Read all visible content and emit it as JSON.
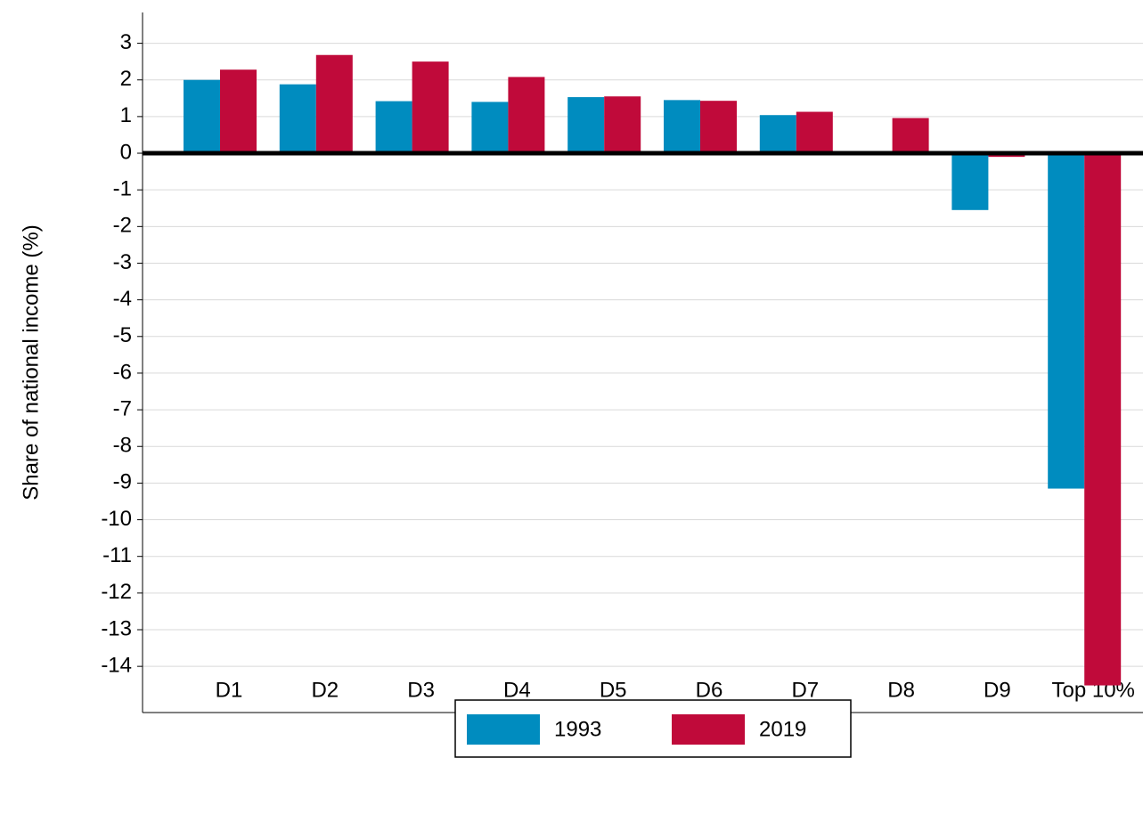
{
  "chart_data": {
    "type": "bar",
    "y_label": "Share of national income (%)",
    "categories": [
      "D1",
      "D2",
      "D3",
      "D4",
      "D5",
      "D6",
      "D7",
      "D8",
      "D9",
      "Top 10%"
    ],
    "series": [
      {
        "name": "1993",
        "color": "#008cbf",
        "values": [
          2.0,
          1.88,
          1.42,
          1.4,
          1.53,
          1.45,
          1.04,
          0.05,
          -1.55,
          -9.15
        ]
      },
      {
        "name": "2019",
        "color": "#c00a3a",
        "values": [
          2.28,
          2.68,
          2.5,
          2.08,
          1.55,
          1.43,
          1.13,
          0.96,
          -0.1,
          -14.52
        ]
      }
    ],
    "ylim": [
      -15.26,
      3.84
    ],
    "yticks": [
      3,
      2,
      1,
      0,
      -1,
      -2,
      -3,
      -4,
      -5,
      -6,
      -7,
      -8,
      -9,
      -10,
      -11,
      -12,
      -13,
      -14
    ],
    "grid": true,
    "legend": "bottom"
  }
}
